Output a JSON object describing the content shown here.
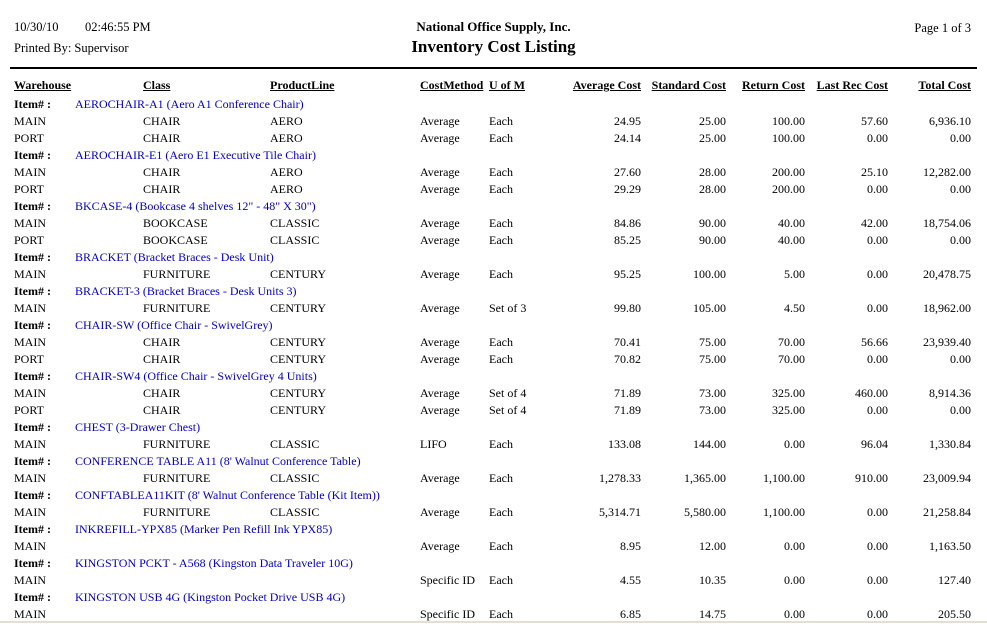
{
  "page": {
    "date": "10/30/10",
    "time": "02:46:55 PM",
    "printed_by": "Printed By: Supervisor",
    "company": "National Office Supply, Inc.",
    "report_title": "Inventory Cost Listing",
    "page_label": "Page 1 of 3"
  },
  "colors": {
    "item_link_blue": "#0000CC",
    "rule_black": "#000000",
    "bottom_strip": "#e3dfd2"
  },
  "table": {
    "item_label": "Item# :",
    "columns": [
      "Warehouse",
      "Class",
      "ProductLine",
      "CostMethod",
      "U of M",
      "Average Cost",
      "Standard Cost",
      "Return Cost",
      "Last Rec Cost",
      "Total Cost"
    ],
    "column_keys": [
      "warehouse-cell",
      "class-cell",
      "product-line-cell",
      "cost-method-cell",
      "uom-cell",
      "average-cost-cell",
      "standard-cost-cell",
      "return-cost-cell",
      "last-rec-cost-cell",
      "total-cost-cell"
    ],
    "rows": [
      {
        "type": "item",
        "text": "AEROCHAIR-A1 (Aero A1 Conference Chair)"
      },
      {
        "type": "data",
        "cells": [
          "MAIN",
          "CHAIR",
          "AERO",
          "Average",
          "Each",
          "24.95",
          "25.00",
          "100.00",
          "57.60",
          "6,936.10"
        ]
      },
      {
        "type": "data",
        "cells": [
          "PORT",
          "CHAIR",
          "AERO",
          "Average",
          "Each",
          "24.14",
          "25.00",
          "100.00",
          "0.00",
          "0.00"
        ]
      },
      {
        "type": "item",
        "text": "AEROCHAIR-E1 (Aero E1 Executive Tile Chair)"
      },
      {
        "type": "data",
        "cells": [
          "MAIN",
          "CHAIR",
          "AERO",
          "Average",
          "Each",
          "27.60",
          "28.00",
          "200.00",
          "25.10",
          "12,282.00"
        ]
      },
      {
        "type": "data",
        "cells": [
          "PORT",
          "CHAIR",
          "AERO",
          "Average",
          "Each",
          "29.29",
          "28.00",
          "200.00",
          "0.00",
          "0.00"
        ]
      },
      {
        "type": "item",
        "text": "BKCASE-4 (Bookcase 4 shelves 12\" - 48\" X 30\")"
      },
      {
        "type": "data",
        "cells": [
          "MAIN",
          "BOOKCASE",
          "CLASSIC",
          "Average",
          "Each",
          "84.86",
          "90.00",
          "40.00",
          "42.00",
          "18,754.06"
        ]
      },
      {
        "type": "data",
        "cells": [
          "PORT",
          "BOOKCASE",
          "CLASSIC",
          "Average",
          "Each",
          "85.25",
          "90.00",
          "40.00",
          "0.00",
          "0.00"
        ]
      },
      {
        "type": "item",
        "text": "BRACKET (Bracket Braces - Desk Unit)"
      },
      {
        "type": "data",
        "cells": [
          "MAIN",
          "FURNITURE",
          "CENTURY",
          "Average",
          "Each",
          "95.25",
          "100.00",
          "5.00",
          "0.00",
          "20,478.75"
        ]
      },
      {
        "type": "item",
        "text": "BRACKET-3 (Bracket Braces - Desk Units 3)"
      },
      {
        "type": "data",
        "cells": [
          "MAIN",
          "FURNITURE",
          "CENTURY",
          "Average",
          "Set of 3",
          "99.80",
          "105.00",
          "4.50",
          "0.00",
          "18,962.00"
        ]
      },
      {
        "type": "item",
        "text": "CHAIR-SW (Office Chair - SwivelGrey)"
      },
      {
        "type": "data",
        "cells": [
          "MAIN",
          "CHAIR",
          "CENTURY",
          "Average",
          "Each",
          "70.41",
          "75.00",
          "70.00",
          "56.66",
          "23,939.40"
        ]
      },
      {
        "type": "data",
        "cells": [
          "PORT",
          "CHAIR",
          "CENTURY",
          "Average",
          "Each",
          "70.82",
          "75.00",
          "70.00",
          "0.00",
          "0.00"
        ]
      },
      {
        "type": "item",
        "text": "CHAIR-SW4 (Office Chair - SwivelGrey 4 Units)"
      },
      {
        "type": "data",
        "cells": [
          "MAIN",
          "CHAIR",
          "CENTURY",
          "Average",
          "Set of 4",
          "71.89",
          "73.00",
          "325.00",
          "460.00",
          "8,914.36"
        ]
      },
      {
        "type": "data",
        "cells": [
          "PORT",
          "CHAIR",
          "CENTURY",
          "Average",
          "Set of 4",
          "71.89",
          "73.00",
          "325.00",
          "0.00",
          "0.00"
        ]
      },
      {
        "type": "item",
        "text": "CHEST (3-Drawer Chest)"
      },
      {
        "type": "data",
        "cells": [
          "MAIN",
          "FURNITURE",
          "CLASSIC",
          "LIFO",
          "Each",
          "133.08",
          "144.00",
          "0.00",
          "96.04",
          "1,330.84"
        ]
      },
      {
        "type": "item",
        "text": "CONFERENCE TABLE A11 (8' Walnut Conference Table)"
      },
      {
        "type": "data",
        "cells": [
          "MAIN",
          "FURNITURE",
          "CLASSIC",
          "Average",
          "Each",
          "1,278.33",
          "1,365.00",
          "1,100.00",
          "910.00",
          "23,009.94"
        ]
      },
      {
        "type": "item",
        "text": "CONFTABLEA11KIT (8' Walnut Conference Table (Kit Item))"
      },
      {
        "type": "data",
        "cells": [
          "MAIN",
          "FURNITURE",
          "CLASSIC",
          "Average",
          "Each",
          "5,314.71",
          "5,580.00",
          "1,100.00",
          "0.00",
          "21,258.84"
        ]
      },
      {
        "type": "item",
        "text": "INKREFILL-YPX85 (Marker Pen Refill Ink YPX85)"
      },
      {
        "type": "data",
        "cells": [
          "MAIN",
          "",
          "",
          "Average",
          "Each",
          "8.95",
          "12.00",
          "0.00",
          "0.00",
          "1,163.50"
        ]
      },
      {
        "type": "item",
        "text": "KINGSTON PCKT - A568 (Kingston Data Traveler 10G)"
      },
      {
        "type": "data",
        "cells": [
          "MAIN",
          "",
          "",
          "Specific ID",
          "Each",
          "4.55",
          "10.35",
          "0.00",
          "0.00",
          "127.40"
        ]
      },
      {
        "type": "item",
        "text": "KINGSTON USB 4G (Kingston Pocket Drive USB 4G)"
      },
      {
        "type": "data",
        "cells": [
          "MAIN",
          "",
          "",
          "Specific ID",
          "Each",
          "6.85",
          "14.75",
          "0.00",
          "0.00",
          "205.50"
        ]
      }
    ]
  }
}
